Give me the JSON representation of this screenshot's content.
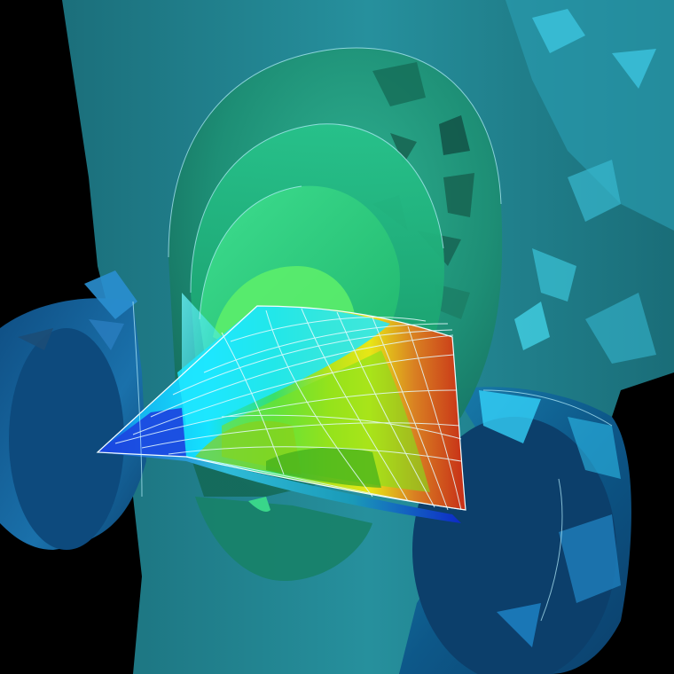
{
  "scene": {
    "palette": {
      "background": "#000000",
      "vessel_teal": "#1f7f8c",
      "vessel_teal_light": "#2aa0ad",
      "vessel_teal_dark": "#145c67",
      "side_branch_blue": "#0f5d93",
      "side_branch_light": "#2f8fc4",
      "dome_green": "#1aa57a",
      "dome_inner": "#2bd49a",
      "mesh_line": "#d9f3ff",
      "field_blue": "#1134d8",
      "field_cyan": "#14e2ff",
      "field_green": "#49d61b",
      "field_yellow": "#e8e616",
      "field_orange": "#d98122",
      "field_red": "#c72d17"
    }
  }
}
